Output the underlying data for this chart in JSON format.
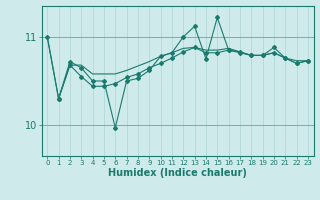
{
  "xlabel": "Humidex (Indice chaleur)",
  "bg_color": "#ceeaea",
  "line_color": "#1a7a6e",
  "grid_color_minor": "#aed4d4",
  "grid_color_major": "#e08080",
  "xlim": [
    -0.5,
    23.5
  ],
  "ylim": [
    9.65,
    11.35
  ],
  "yticks": [
    10,
    11
  ],
  "xticks": [
    0,
    1,
    2,
    3,
    4,
    5,
    6,
    7,
    8,
    9,
    10,
    11,
    12,
    13,
    14,
    15,
    16,
    17,
    18,
    19,
    20,
    21,
    22,
    23
  ],
  "line1_x": [
    0,
    1,
    2,
    3,
    4,
    5,
    6,
    7,
    8,
    9,
    10,
    11,
    12,
    13,
    14,
    15,
    16,
    17,
    18,
    19,
    20,
    21,
    22,
    23
  ],
  "line1_y": [
    11.0,
    10.3,
    10.68,
    10.68,
    10.58,
    10.58,
    10.58,
    10.62,
    10.67,
    10.72,
    10.78,
    10.82,
    10.87,
    10.88,
    10.85,
    10.85,
    10.87,
    10.83,
    10.79,
    10.79,
    10.82,
    10.76,
    10.73,
    10.73
  ],
  "line2_x": [
    0,
    1,
    2,
    3,
    4,
    5,
    6,
    7,
    8,
    9,
    10,
    11,
    12,
    13,
    14,
    15,
    16,
    17,
    18,
    19,
    20,
    21,
    22,
    23
  ],
  "line2_y": [
    11.0,
    10.3,
    10.72,
    10.65,
    10.5,
    10.5,
    9.97,
    10.5,
    10.53,
    10.62,
    10.78,
    10.82,
    11.0,
    11.12,
    10.75,
    11.22,
    10.85,
    10.82,
    10.79,
    10.79,
    10.88,
    10.76,
    10.7,
    10.73
  ],
  "line3_x": [
    1,
    2,
    3,
    4,
    5,
    6,
    7,
    8,
    9,
    10,
    11,
    12,
    13,
    14,
    15,
    16,
    17,
    18,
    19,
    20,
    21,
    22,
    23
  ],
  "line3_y": [
    10.3,
    10.68,
    10.55,
    10.44,
    10.44,
    10.47,
    10.54,
    10.58,
    10.65,
    10.7,
    10.76,
    10.83,
    10.88,
    10.82,
    10.82,
    10.85,
    10.83,
    10.79,
    10.79,
    10.82,
    10.76,
    10.7,
    10.73
  ]
}
